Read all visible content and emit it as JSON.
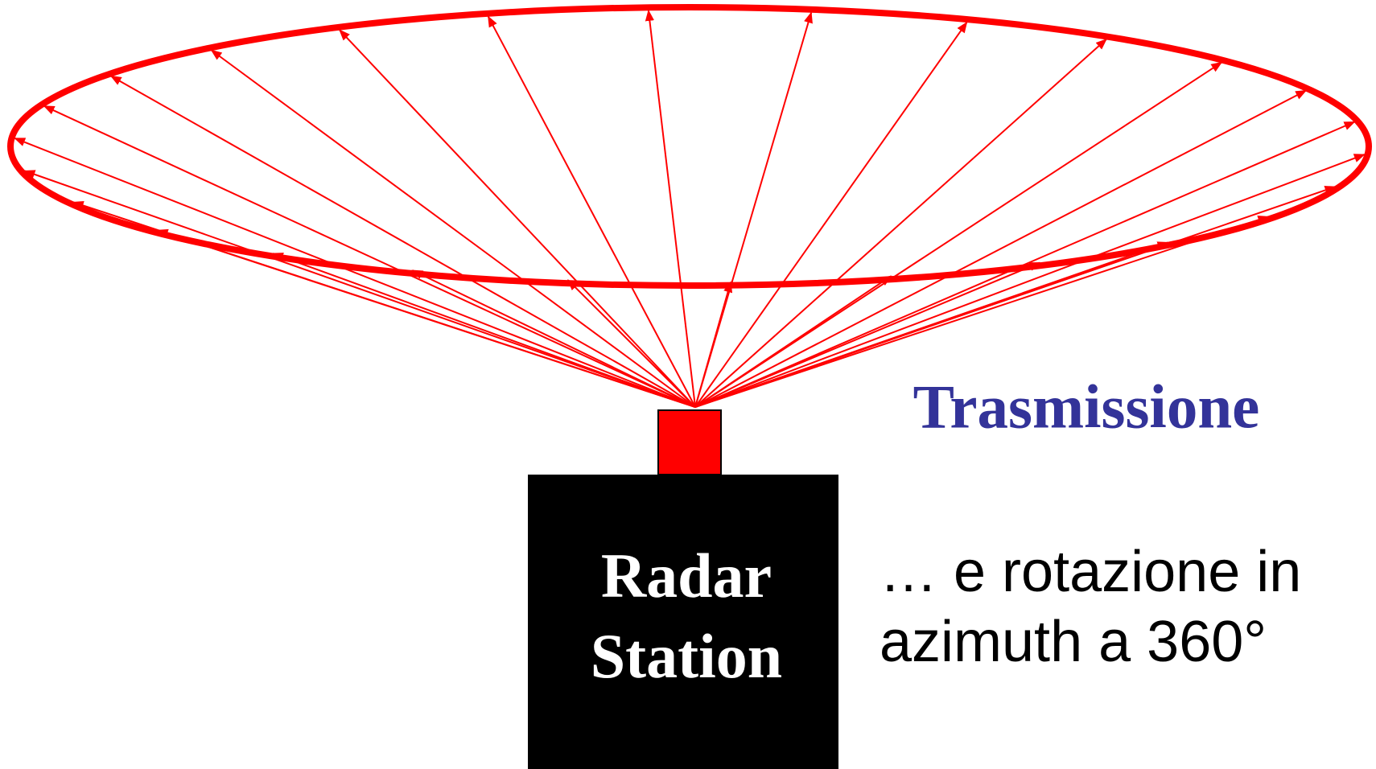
{
  "title": "Trasmissione",
  "station": {
    "lines": [
      "Radar",
      "Station"
    ]
  },
  "caption": {
    "lines": [
      "… e rotazione in",
      "azimuth a 360°"
    ]
  }
}
